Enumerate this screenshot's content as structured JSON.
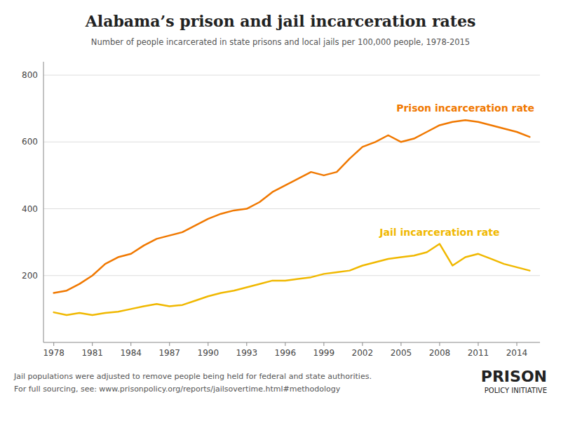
{
  "chart_data": {
    "type": "line",
    "title": "Alabama’s prison and jail incarceration rates",
    "subtitle": "Number of people incarcerated in state prisons and local jails per 100,000 people, 1978-2015",
    "annotations": [
      "Jail populations were adjusted to remove people being held for federal and state authorities.",
      "For full sourcing, see: www.prisonpolicy.org/reports/jailsovertime.html#methodology",
      "PRISON",
      "POLICY INITIATIVE"
    ],
    "x": [
      1978,
      1979,
      1980,
      1981,
      1982,
      1983,
      1984,
      1985,
      1986,
      1987,
      1988,
      1989,
      1990,
      1991,
      1992,
      1993,
      1994,
      1995,
      1996,
      1997,
      1998,
      1999,
      2000,
      2001,
      2002,
      2003,
      2004,
      2005,
      2006,
      2007,
      2008,
      2009,
      2010,
      2011,
      2012,
      2013,
      2014,
      2015
    ],
    "series": [
      {
        "name": "Prison incarceration rate",
        "color": "#f07800",
        "values": [
          148,
          155,
          175,
          200,
          235,
          255,
          265,
          290,
          310,
          320,
          330,
          350,
          370,
          385,
          395,
          400,
          420,
          450,
          470,
          490,
          510,
          500,
          510,
          550,
          585,
          600,
          620,
          600,
          610,
          630,
          650,
          660,
          665,
          660,
          650,
          640,
          630,
          615
        ]
      },
      {
        "name": "Jail incarceration rate",
        "color": "#f0b800",
        "values": [
          90,
          82,
          88,
          82,
          88,
          92,
          100,
          108,
          115,
          108,
          112,
          125,
          138,
          148,
          155,
          165,
          175,
          185,
          185,
          190,
          195,
          205,
          210,
          215,
          230,
          240,
          250,
          255,
          260,
          270,
          295,
          230,
          255,
          265,
          250,
          235,
          225,
          215
        ]
      }
    ],
    "xlim": [
      1977.2,
      2015.8
    ],
    "xticks": [
      1978,
      1981,
      1984,
      1987,
      1990,
      1993,
      1996,
      1999,
      2002,
      2005,
      2008,
      2011,
      2014
    ],
    "ylim": [
      0,
      840
    ],
    "yticks": [
      200,
      400,
      600,
      800
    ],
    "grid": true
  }
}
